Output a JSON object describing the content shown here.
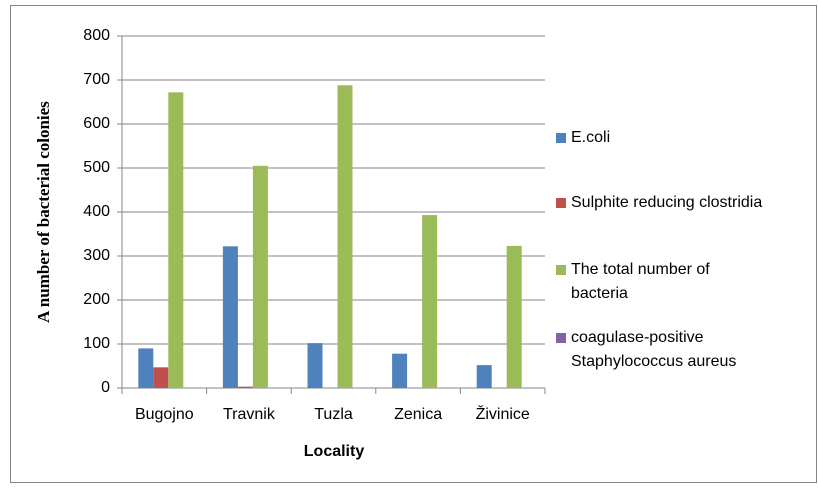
{
  "chart_data": {
    "type": "bar",
    "y_label": "A number of bacterial colonies",
    "x_label": "Locality",
    "categories": [
      "Bugojno",
      "Travnik",
      "Tuzla",
      "Zenica",
      "Živinice"
    ],
    "series": [
      {
        "name": "E.coli",
        "color": "#4f81bd",
        "values": [
          90,
          322,
          102,
          78,
          52
        ]
      },
      {
        "name": "Sulphite reducing clostridia",
        "color": "#c0504d",
        "values": [
          47,
          3,
          0,
          0,
          0
        ]
      },
      {
        "name": "The total number of bacteria",
        "color": "#9bbb59",
        "values": [
          672,
          505,
          688,
          393,
          323
        ]
      },
      {
        "name": "coagulase-positive Staphylococcus aureus",
        "color": "#8064a2",
        "values": [
          0,
          0,
          0,
          0,
          0
        ]
      }
    ],
    "ylim": [
      0,
      800
    ],
    "yticks": [
      0,
      100,
      200,
      300,
      400,
      500,
      600,
      700,
      800
    ],
    "grid": true,
    "legend": "right"
  }
}
